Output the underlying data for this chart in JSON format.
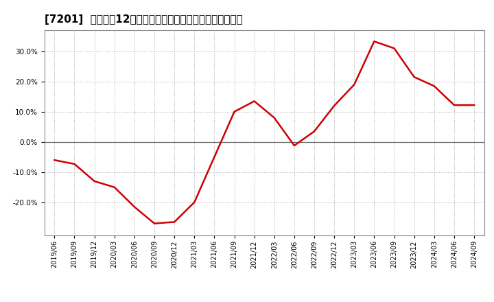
{
  "title": "[7201]  売上高の12か月移動合計の対前年同期増減率の推移",
  "line_color": "#cc0000",
  "background_color": "#ffffff",
  "plot_bg_color": "#ffffff",
  "grid_color": "#aaaaaa",
  "zero_line_color": "#666666",
  "dates": [
    "2019/06",
    "2019/09",
    "2019/12",
    "2020/03",
    "2020/06",
    "2020/09",
    "2020/12",
    "2021/03",
    "2021/06",
    "2021/09",
    "2021/12",
    "2022/03",
    "2022/06",
    "2022/09",
    "2022/12",
    "2023/03",
    "2023/06",
    "2023/09",
    "2023/12",
    "2024/03",
    "2024/06",
    "2024/09"
  ],
  "values": [
    -0.06,
    -0.073,
    -0.13,
    -0.15,
    -0.215,
    -0.27,
    -0.265,
    -0.2,
    -0.05,
    0.1,
    0.135,
    0.08,
    -0.012,
    0.035,
    0.12,
    0.19,
    0.333,
    0.31,
    0.215,
    0.185,
    0.122,
    0.122
  ],
  "yticks": [
    -0.2,
    -0.1,
    0.0,
    0.1,
    0.2,
    0.3
  ],
  "ylim": [
    -0.31,
    0.37
  ],
  "title_fontsize": 11,
  "tick_fontsize": 7,
  "line_width": 1.8
}
